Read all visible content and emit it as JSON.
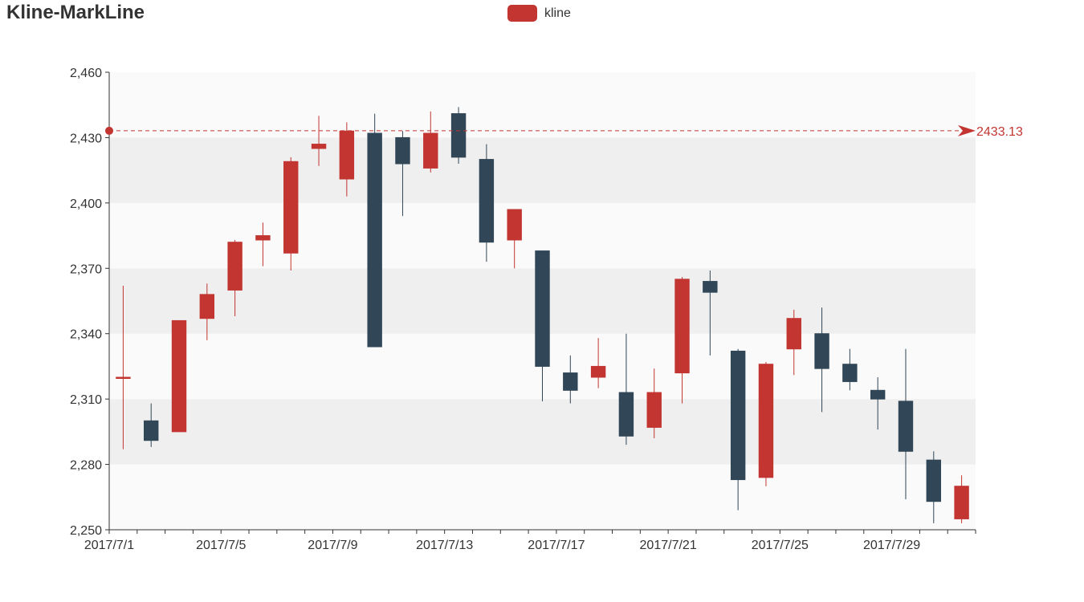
{
  "title": "Kline-MarkLine",
  "legend": {
    "label": "kline",
    "color": "#c23531"
  },
  "colors": {
    "up": "#c23531",
    "down": "#314656",
    "axis": "#333333",
    "band_light": "#fafafa",
    "band_dark": "#efefef"
  },
  "chart_data": {
    "type": "candlestick",
    "title": "Kline-MarkLine",
    "series": [
      {
        "name": "kline",
        "data": [
          {
            "date": "2017/7/1",
            "open": 2320,
            "close": 2320,
            "low": 2287,
            "high": 2362
          },
          {
            "date": "2017/7/2",
            "open": 2300,
            "close": 2291,
            "low": 2288,
            "high": 2308
          },
          {
            "date": "2017/7/3",
            "open": 2295,
            "close": 2346,
            "low": 2295,
            "high": 2346
          },
          {
            "date": "2017/7/4",
            "open": 2347,
            "close": 2358,
            "low": 2337,
            "high": 2363
          },
          {
            "date": "2017/7/5",
            "open": 2360,
            "close": 2382,
            "low": 2348,
            "high": 2383
          },
          {
            "date": "2017/7/6",
            "open": 2383,
            "close": 2385,
            "low": 2371,
            "high": 2391
          },
          {
            "date": "2017/7/7",
            "open": 2377,
            "close": 2419,
            "low": 2369,
            "high": 2421
          },
          {
            "date": "2017/7/8",
            "open": 2425,
            "close": 2427,
            "low": 2417,
            "high": 2440
          },
          {
            "date": "2017/7/9",
            "open": 2411,
            "close": 2433,
            "low": 2403,
            "high": 2437
          },
          {
            "date": "2017/7/10",
            "open": 2432,
            "close": 2334,
            "low": 2334,
            "high": 2441
          },
          {
            "date": "2017/7/11",
            "open": 2430,
            "close": 2418,
            "low": 2394,
            "high": 2433
          },
          {
            "date": "2017/7/12",
            "open": 2416,
            "close": 2432,
            "low": 2414,
            "high": 2442
          },
          {
            "date": "2017/7/13",
            "open": 2441,
            "close": 2421,
            "low": 2418,
            "high": 2444
          },
          {
            "date": "2017/7/14",
            "open": 2420,
            "close": 2382,
            "low": 2373,
            "high": 2427
          },
          {
            "date": "2017/7/15",
            "open": 2383,
            "close": 2397,
            "low": 2370,
            "high": 2397
          },
          {
            "date": "2017/7/16",
            "open": 2378,
            "close": 2325,
            "low": 2309,
            "high": 2378
          },
          {
            "date": "2017/7/17",
            "open": 2322,
            "close": 2314,
            "low": 2308,
            "high": 2330
          },
          {
            "date": "2017/7/18",
            "open": 2320,
            "close": 2325,
            "low": 2315,
            "high": 2338
          },
          {
            "date": "2017/7/19",
            "open": 2313,
            "close": 2293,
            "low": 2289,
            "high": 2340
          },
          {
            "date": "2017/7/20",
            "open": 2297,
            "close": 2313,
            "low": 2292,
            "high": 2324
          },
          {
            "date": "2017/7/21",
            "open": 2322,
            "close": 2365,
            "low": 2308,
            "high": 2366
          },
          {
            "date": "2017/7/22",
            "open": 2364,
            "close": 2359,
            "low": 2330,
            "high": 2369
          },
          {
            "date": "2017/7/23",
            "open": 2332,
            "close": 2273,
            "low": 2259,
            "high": 2333
          },
          {
            "date": "2017/7/24",
            "open": 2274,
            "close": 2326,
            "low": 2270,
            "high": 2327
          },
          {
            "date": "2017/7/25",
            "open": 2333,
            "close": 2347,
            "low": 2321,
            "high": 2351
          },
          {
            "date": "2017/7/26",
            "open": 2340,
            "close": 2324,
            "low": 2304,
            "high": 2352
          },
          {
            "date": "2017/7/27",
            "open": 2326,
            "close": 2318,
            "low": 2314,
            "high": 2333
          },
          {
            "date": "2017/7/28",
            "open": 2314,
            "close": 2310,
            "low": 2296,
            "high": 2320
          },
          {
            "date": "2017/7/29",
            "open": 2309,
            "close": 2286,
            "low": 2264,
            "high": 2333
          },
          {
            "date": "2017/7/30",
            "open": 2282,
            "close": 2263,
            "low": 2253,
            "high": 2286
          },
          {
            "date": "2017/7/31",
            "open": 2255,
            "close": 2270,
            "low": 2253,
            "high": 2275
          }
        ]
      }
    ],
    "x_tick_labels": [
      "2017/7/1",
      "2017/7/5",
      "2017/7/9",
      "2017/7/13",
      "2017/7/17",
      "2017/7/21",
      "2017/7/25",
      "2017/7/29"
    ],
    "y_ticks": [
      2250,
      2280,
      2310,
      2340,
      2370,
      2400,
      2430,
      2460
    ],
    "y_tick_labels": [
      "2,250",
      "2,280",
      "2,310",
      "2,340",
      "2,370",
      "2,400",
      "2,430",
      "2,460"
    ],
    "ylim": [
      2250,
      2460
    ],
    "mark_line": {
      "value": 2433.13,
      "label": "2433.13"
    },
    "split_area": true,
    "legend_position": "top-center"
  }
}
